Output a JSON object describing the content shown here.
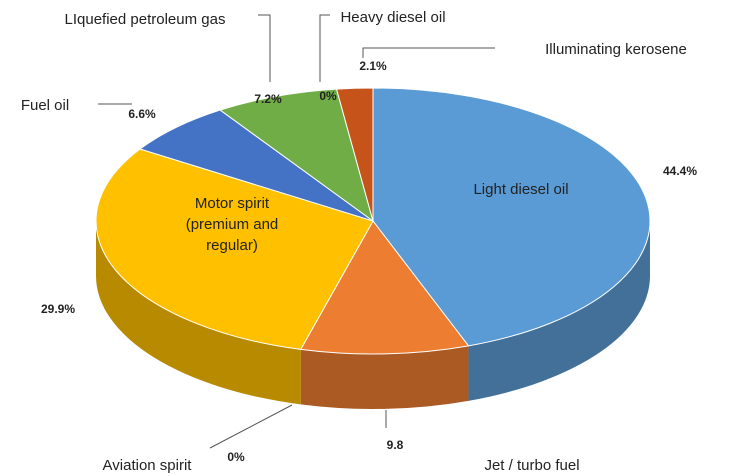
{
  "chart_data": {
    "type": "pie3d",
    "categories": [
      "Light diesel oil",
      "Jet / turbo fuel",
      "Aviation spirit",
      "Motor spirit (premium and regular)",
      "Fuel oil",
      "LIquefied petroleum gas",
      "Heavy diesel oil",
      "Illuminating kerosene"
    ],
    "values": [
      44.4,
      9.8,
      0,
      29.9,
      6.6,
      7.2,
      0,
      2.1
    ],
    "value_labels": [
      "44.4%",
      "9.8",
      "0%",
      "29.9%",
      "6.6%",
      "7.2%",
      "0%",
      "2.1%"
    ],
    "colors": [
      "#5b9bd5",
      "#ed7d31",
      "#a5a5a5",
      "#ffc000",
      "#4472c4",
      "#70ad47",
      "#264478",
      "#c5531a"
    ]
  }
}
